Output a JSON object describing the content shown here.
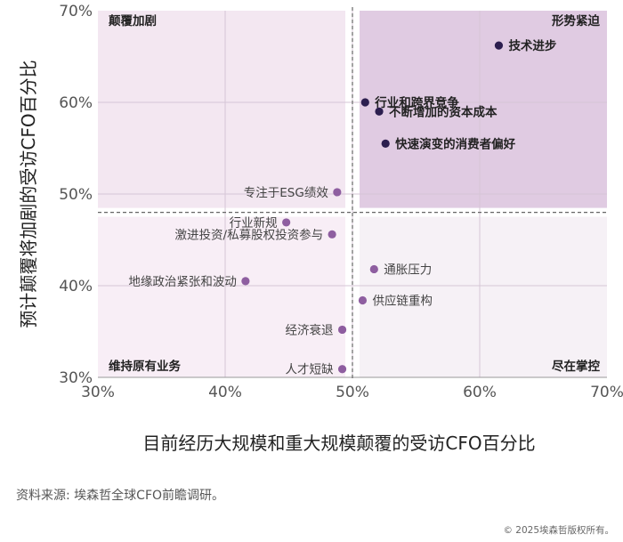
{
  "chart_data": {
    "type": "scatter",
    "xlabel": "目前经历大规模和重大规模颠覆的受访CFO百分比",
    "ylabel": "预计颠覆将加剧的受访CFO百分比",
    "xlim": [
      30,
      70
    ],
    "ylim": [
      30,
      70
    ],
    "x_ticks": [
      "30%",
      "40%",
      "50%",
      "60%",
      "70%"
    ],
    "y_ticks": [
      "70%",
      "60%",
      "50%",
      "40%",
      "30%"
    ],
    "divider": {
      "x": 50,
      "y": 48
    },
    "quadrants": {
      "top_left": "颠覆加剧",
      "top_right": "形势紧迫",
      "bottom_left": "维持原有业务",
      "bottom_right": "尽在掌控"
    },
    "colors": {
      "quad_tl": "#f3e7f1",
      "quad_tr": "#e0cbe2",
      "quad_bl": "#f8eef6",
      "quad_br": "#f6f1f6",
      "point_dark": "#2c1e4f",
      "point_light": "#8e5ea0"
    },
    "points": [
      {
        "label": "技术进步",
        "x": 61.5,
        "y": 66.2,
        "tone": "dark"
      },
      {
        "label": "行业和跨界竞争",
        "x": 51.0,
        "y": 60.0,
        "tone": "dark"
      },
      {
        "label": "不断增加的资本成本",
        "x": 52.1,
        "y": 59.0,
        "tone": "dark"
      },
      {
        "label": "快速演变的消费者偏好",
        "x": 52.6,
        "y": 55.5,
        "tone": "dark"
      },
      {
        "label": "专注于ESG绩效",
        "x": 48.8,
        "y": 50.2,
        "tone": "light"
      },
      {
        "label": "行业新规",
        "x": 44.8,
        "y": 46.9,
        "tone": "light"
      },
      {
        "label": "激进投资/私募股权投资参与",
        "x": 48.4,
        "y": 45.6,
        "tone": "light"
      },
      {
        "label": "通胀压力",
        "x": 51.7,
        "y": 41.8,
        "tone": "light"
      },
      {
        "label": "地缘政治紧张和波动",
        "x": 41.6,
        "y": 40.5,
        "tone": "light"
      },
      {
        "label": "供应链重构",
        "x": 50.8,
        "y": 38.4,
        "tone": "light"
      },
      {
        "label": "经济衰退",
        "x": 49.2,
        "y": 35.2,
        "tone": "light"
      },
      {
        "label": "人才短缺",
        "x": 49.2,
        "y": 30.9,
        "tone": "light"
      }
    ]
  },
  "source": "资料来源: 埃森哲全球CFO前瞻调研。",
  "copyright": "© 2025埃森哲版权所有。"
}
